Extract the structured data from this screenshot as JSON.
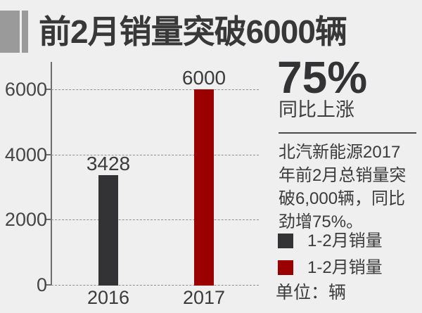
{
  "title": "前2月销量突破6000辆",
  "highlight": {
    "percent": "75%",
    "caption": "同比上涨"
  },
  "summary": {
    "full_text": "北汽新能源2017年前2月总销量突破6,000辆，同比劲增75%。",
    "lines": [
      "北汽新能源2017",
      "年前2月总销量突",
      "破6,000辆，同比",
      "劲增75%。"
    ]
  },
  "legend": [
    {
      "label": "1-2月销量",
      "color": "#333234"
    },
    {
      "label": "1-2月销量",
      "color": "#9a0000"
    }
  ],
  "unit_note": "单位：辆",
  "chart_data": {
    "type": "bar",
    "title": "前2月销量突破6000辆",
    "categories": [
      "2016",
      "2017"
    ],
    "values": [
      3428,
      6000
    ],
    "bar_labels": [
      "3428",
      "6000"
    ],
    "bar_colors": [
      "#333234",
      "#9a0000"
    ],
    "xlabel": "",
    "ylabel": "",
    "unit": "辆",
    "ylim": [
      0,
      6000
    ],
    "yticks": [
      0,
      2000,
      4000,
      6000
    ],
    "ytick_labels_top_to_bottom": [
      "6000",
      "4000",
      "2000",
      "0"
    ],
    "grid": "horizontal-dashed",
    "legend_position": "right",
    "annotation": "75% 同比上涨"
  },
  "colors": {
    "background": "#efefef",
    "text_dark": "#383838",
    "bar_2016": "#333234",
    "bar_2017": "#9a0000",
    "ornament_gray": "#9a9a9a"
  }
}
